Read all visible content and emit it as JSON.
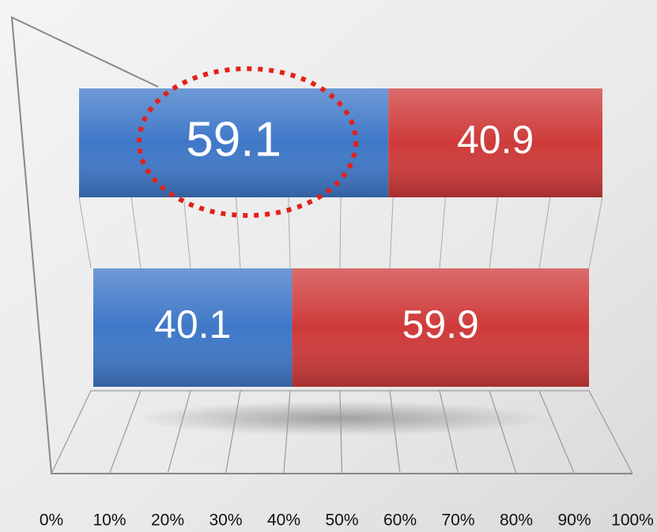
{
  "chart_data": {
    "type": "stacked-bar-horizontal",
    "categories": [
      null,
      null
    ],
    "series": [
      {
        "color": "#3f78c8",
        "values": [
          59.1,
          40.1
        ]
      },
      {
        "color": "#cf3a3a",
        "values": [
          40.9,
          59.9
        ]
      }
    ],
    "xlim": [
      0,
      100
    ],
    "xticks": [
      {
        "value": 0,
        "label": "0%"
      },
      {
        "value": 10,
        "label": "10%"
      },
      {
        "value": 20,
        "label": "20%"
      },
      {
        "value": 30,
        "label": "30%"
      },
      {
        "value": 40,
        "label": "40%"
      },
      {
        "value": 50,
        "label": "50%"
      },
      {
        "value": 60,
        "label": "60%"
      },
      {
        "value": 70,
        "label": "70%"
      },
      {
        "value": 80,
        "label": "80%"
      },
      {
        "value": 90,
        "label": "90%"
      },
      {
        "value": 100,
        "label": "100%"
      }
    ],
    "grid": true
  }
}
